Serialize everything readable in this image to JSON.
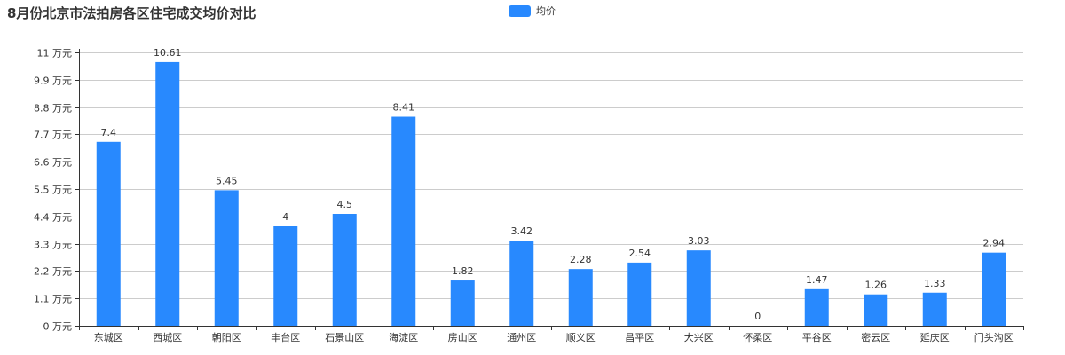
{
  "chart_data": {
    "type": "bar",
    "title": "8月份北京市法拍房各区住宅成交均价对比",
    "xlabel": "",
    "ylabel": "",
    "y_unit": "万元",
    "ylim": [
      0,
      11
    ],
    "y_ticks": [
      0,
      1.1,
      2.2,
      3.3,
      4.4,
      5.5,
      6.6,
      7.7,
      8.8,
      9.9,
      11
    ],
    "grid": true,
    "legend_position": "top-center",
    "categories": [
      "东城区",
      "西城区",
      "朝阳区",
      "丰台区",
      "石景山区",
      "海淀区",
      "房山区",
      "通州区",
      "顺义区",
      "昌平区",
      "大兴区",
      "怀柔区",
      "平谷区",
      "密云区",
      "延庆区",
      "门头沟区"
    ],
    "series": [
      {
        "name": "均价",
        "color": "#2889fe",
        "values": [
          7.4,
          10.61,
          5.45,
          4,
          4.5,
          8.41,
          1.82,
          3.42,
          2.28,
          2.54,
          3.03,
          0,
          1.47,
          1.26,
          1.33,
          2.94
        ]
      }
    ]
  }
}
